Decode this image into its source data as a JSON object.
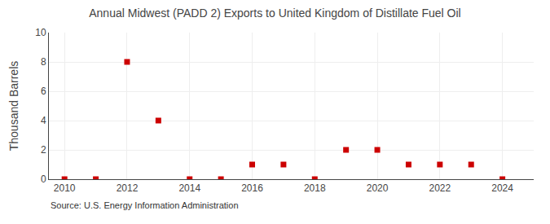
{
  "chart_data": {
    "type": "scatter",
    "title": "Annual Midwest (PADD 2) Exports to United Kingdom of Distillate Fuel Oil",
    "ylabel": "Thousand Barrels",
    "source": "Source: U.S. Energy Information Administration",
    "x": [
      2010,
      2011,
      2012,
      2013,
      2014,
      2015,
      2016,
      2017,
      2018,
      2019,
      2020,
      2021,
      2022,
      2023,
      2024
    ],
    "values": [
      0,
      0,
      8,
      4,
      0,
      0,
      1,
      1,
      0,
      2,
      2,
      1,
      1,
      1,
      0
    ],
    "color": "#cc0000",
    "marker": "square",
    "xlim": [
      2009.5,
      2025.0
    ],
    "xticks": [
      2010,
      2012,
      2014,
      2016,
      2018,
      2020,
      2022,
      2024
    ],
    "ylim": [
      0,
      10
    ],
    "yticks": [
      0,
      2,
      4,
      6,
      8,
      10
    ],
    "grid": true
  }
}
